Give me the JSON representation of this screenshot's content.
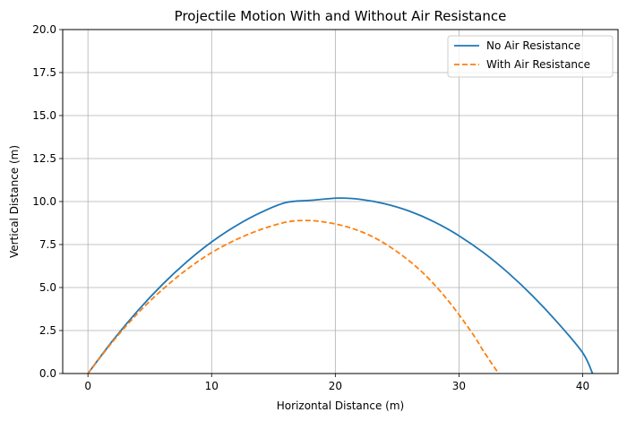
{
  "chart_data": {
    "type": "line",
    "title": "Projectile Motion With and Without Air Resistance",
    "xlabel": "Horizontal Distance (m)",
    "ylabel": "Vertical Distance (m)",
    "xlim": [
      -2.04,
      42.86
    ],
    "ylim": [
      0,
      20
    ],
    "xticks": [
      0,
      10,
      20,
      30,
      40
    ],
    "xtick_labels": [
      "0",
      "10",
      "20",
      "30",
      "40"
    ],
    "yticks": [
      0,
      2.5,
      5,
      7.5,
      10,
      12.5,
      15,
      17.5,
      20
    ],
    "ytick_labels": [
      "0.0",
      "2.5",
      "5.0",
      "7.5",
      "10.0",
      "12.5",
      "15.0",
      "17.5",
      "20.0"
    ],
    "grid": true,
    "legend_position": "top-right",
    "series": [
      {
        "name": "No Air Resistance",
        "color": "#1f77b4",
        "style": "solid",
        "x": [
          0,
          2,
          4,
          6,
          8,
          10,
          12,
          14,
          16,
          18,
          20.3,
          22,
          24,
          26,
          28,
          30,
          32,
          34,
          36,
          38,
          40,
          40.8
        ],
        "y": [
          0,
          1.91,
          3.63,
          5.16,
          6.5,
          7.65,
          8.6,
          9.37,
          9.94,
          10.07,
          10.2,
          10.13,
          9.87,
          9.44,
          8.82,
          8.01,
          7.02,
          5.84,
          4.48,
          2.94,
          1.21,
          0
        ]
      },
      {
        "name": "With Air Resistance",
        "color": "#ff7f0e",
        "style": "dashed",
        "x": [
          0,
          2,
          4,
          6,
          8,
          10,
          12,
          14,
          16,
          17.5,
          19,
          21,
          23,
          25,
          27,
          29,
          31,
          32,
          33.2
        ],
        "y": [
          0,
          1.85,
          3.48,
          4.87,
          6.05,
          7.03,
          7.79,
          8.38,
          8.8,
          8.9,
          8.82,
          8.52,
          7.96,
          7.08,
          5.91,
          4.35,
          2.42,
          1.28,
          0
        ]
      }
    ]
  }
}
